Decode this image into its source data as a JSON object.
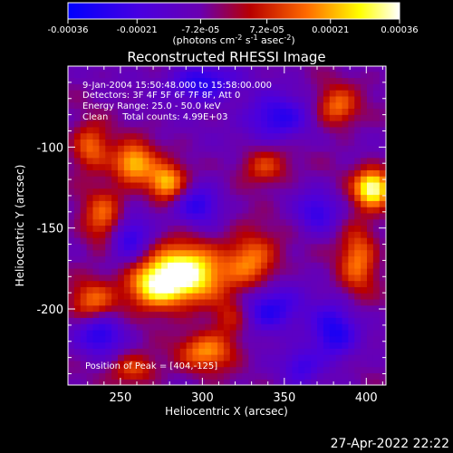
{
  "colorbar": {
    "tick_labels": [
      "-0.00036",
      "-0.00021",
      "-7.2e-05",
      "7.2e-05",
      "0.00021",
      "0.00036"
    ],
    "tick_values": [
      -0.00036,
      -0.00021,
      -7.2e-05,
      7.2e-05,
      0.00021,
      0.00036
    ],
    "range": [
      -0.00036,
      0.00036
    ],
    "unit_label": "(photons cm",
    "unit_exp1": "-2",
    "unit_mid": " s",
    "unit_exp2": "-1",
    "unit_tail": " asec",
    "unit_exp3": "-2",
    "unit_close": ")"
  },
  "chart_data": {
    "type": "heatmap",
    "title": "Reconstructed RHESSI Image",
    "xlabel": "Heliocentric X (arcsec)",
    "ylabel": "Heliocentric Y (arcsec)",
    "xlim": [
      218,
      412
    ],
    "ylim": [
      -247,
      -50
    ],
    "x_ticks": [
      250,
      300,
      350,
      400
    ],
    "y_ticks": [
      -100,
      -150,
      -200
    ],
    "annotations": [
      "9-Jan-2004 15:50:48.000 to 15:58:00.000",
      "Detectors: 3F 4F 5F 6F 7F 8F, Att 0",
      "Energy Range: 25.0 - 50.0 keV",
      "Clean     Total counts: 4.99E+03"
    ],
    "peak_label": "Position of Peak = [404,-125]",
    "peak": [
      404,
      -125
    ],
    "colormap": [
      "#0000ff",
      "#6a00c8",
      "#c00000",
      "#ff8000",
      "#ffff00",
      "#ffffff"
    ],
    "sources": [
      {
        "x": 290,
        "y": -178,
        "amp": 1.0,
        "sx": 16,
        "sy": 13
      },
      {
        "x": 270,
        "y": -185,
        "amp": 0.7,
        "sx": 12,
        "sy": 10
      },
      {
        "x": 330,
        "y": -170,
        "amp": 0.6,
        "sx": 11,
        "sy": 12
      },
      {
        "x": 258,
        "y": -110,
        "amp": 0.75,
        "sx": 9,
        "sy": 9
      },
      {
        "x": 278,
        "y": -122,
        "amp": 0.75,
        "sx": 8,
        "sy": 8
      },
      {
        "x": 404,
        "y": -125,
        "amp": 1.0,
        "sx": 8,
        "sy": 8
      },
      {
        "x": 240,
        "y": -145,
        "amp": 0.55,
        "sx": 9,
        "sy": 13
      },
      {
        "x": 233,
        "y": -195,
        "amp": 0.5,
        "sx": 10,
        "sy": 9
      },
      {
        "x": 303,
        "y": -226,
        "amp": 0.6,
        "sx": 12,
        "sy": 8
      },
      {
        "x": 395,
        "y": -168,
        "amp": 0.55,
        "sx": 8,
        "sy": 16
      },
      {
        "x": 382,
        "y": -75,
        "amp": 0.55,
        "sx": 9,
        "sy": 9
      },
      {
        "x": 338,
        "y": -112,
        "amp": 0.45,
        "sx": 10,
        "sy": 8
      },
      {
        "x": 232,
        "y": -100,
        "amp": 0.55,
        "sx": 8,
        "sy": 10
      },
      {
        "x": 258,
        "y": -237,
        "amp": 0.45,
        "sx": 10,
        "sy": 7
      },
      {
        "x": 318,
        "y": -205,
        "amp": 0.4,
        "sx": 9,
        "sy": 9
      },
      {
        "x": 300,
        "y": -60,
        "amp": -0.55,
        "sx": 14,
        "sy": 8
      },
      {
        "x": 345,
        "y": -82,
        "amp": -0.5,
        "sx": 14,
        "sy": 10
      },
      {
        "x": 255,
        "y": -155,
        "amp": -0.55,
        "sx": 10,
        "sy": 10
      },
      {
        "x": 340,
        "y": -200,
        "amp": -0.55,
        "sx": 14,
        "sy": 10
      },
      {
        "x": 298,
        "y": -135,
        "amp": -0.45,
        "sx": 10,
        "sy": 9
      },
      {
        "x": 370,
        "y": -140,
        "amp": -0.4,
        "sx": 9,
        "sy": 9
      },
      {
        "x": 238,
        "y": -215,
        "amp": -0.5,
        "sx": 10,
        "sy": 9
      },
      {
        "x": 380,
        "y": -215,
        "amp": -0.55,
        "sx": 10,
        "sy": 12
      },
      {
        "x": 360,
        "y": -235,
        "amp": -0.35,
        "sx": 8,
        "sy": 8
      }
    ]
  },
  "footer": {
    "date": "27-Apr-2022 22:22"
  }
}
